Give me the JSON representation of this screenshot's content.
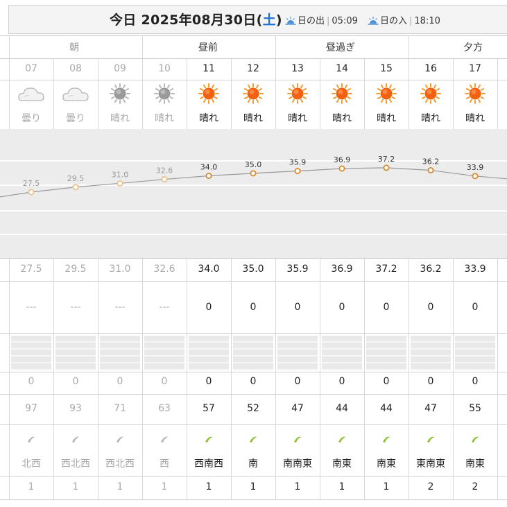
{
  "header": {
    "today_label": "今日",
    "date": "2025年08月30日",
    "dow": "土",
    "paren_open": "(",
    "paren_close": ")",
    "sunrise_label": "日の出",
    "sunrise_time": "05:09",
    "sunset_label": "日の入",
    "sunset_time": "18:10"
  },
  "time_of_day": {
    "morning": "朝",
    "before_noon": "昼前",
    "afternoon": "昼過ぎ",
    "evening": "夕方"
  },
  "hours": [
    "07",
    "08",
    "09",
    "10",
    "11",
    "12",
    "13",
    "14",
    "15",
    "16",
    "17"
  ],
  "weather": {
    "icons": [
      "cloud-icon",
      "cloud-icon",
      "sun-gray-icon",
      "sun-gray-icon",
      "sun-icon",
      "sun-icon",
      "sun-icon",
      "sun-icon",
      "sun-icon",
      "sun-icon",
      "sun-icon"
    ],
    "labels": [
      "曇り",
      "曇り",
      "晴れ",
      "晴れ",
      "晴れ",
      "晴れ",
      "晴れ",
      "晴れ",
      "晴れ",
      "晴れ",
      "晴れ"
    ]
  },
  "chart_data": {
    "type": "line",
    "x": [
      "07",
      "08",
      "09",
      "10",
      "11",
      "12",
      "13",
      "14",
      "15",
      "16",
      "17"
    ],
    "series": [
      {
        "values": [
          27.5,
          29.5,
          31.0,
          32.6,
          34.0,
          35.0,
          35.9,
          36.9,
          37.2,
          36.2,
          33.9
        ]
      }
    ],
    "colors": {
      "past": "#e8c48f",
      "future": "#d98a2b",
      "line": "#9a9a9a"
    }
  },
  "temperature": [
    "27.5",
    "29.5",
    "31.0",
    "32.6",
    "34.0",
    "35.0",
    "35.9",
    "36.9",
    "37.2",
    "36.2",
    "33.9"
  ],
  "precip_prob": [
    "---",
    "---",
    "---",
    "---",
    "0",
    "0",
    "0",
    "0",
    "0",
    "0",
    "0"
  ],
  "precip_amount": [
    "0",
    "0",
    "0",
    "0",
    "0",
    "0",
    "0",
    "0",
    "0",
    "0",
    "0"
  ],
  "humidity": [
    "97",
    "93",
    "71",
    "63",
    "57",
    "52",
    "47",
    "44",
    "44",
    "47",
    "55"
  ],
  "wind_dir": [
    "北西",
    "西北西",
    "西北西",
    "西",
    "西南西",
    "南",
    "南南東",
    "南東",
    "南東",
    "東南東",
    "南東"
  ],
  "wind_speed": [
    "1",
    "1",
    "1",
    "1",
    "1",
    "1",
    "1",
    "1",
    "1",
    "2",
    "2"
  ],
  "colors": {
    "accent_blue": "#1e6fd8",
    "sun_orange": "#f07a1a",
    "arrow_green": "#8cbf2a"
  }
}
